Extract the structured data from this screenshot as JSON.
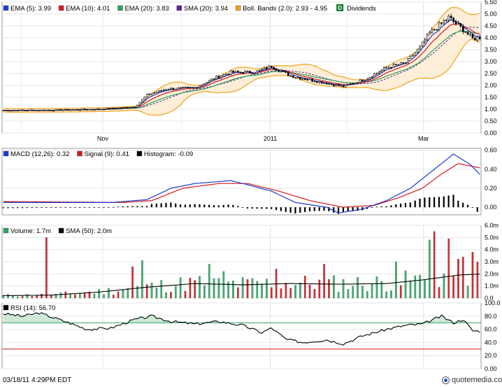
{
  "chart_data": [
    {
      "panel": "price",
      "type": "candlestick",
      "legend": [
        {
          "label": "EMA (5): 3.99",
          "color": "#1f3ccf"
        },
        {
          "label": "EMA (10): 4.01",
          "color": "#d7191c"
        },
        {
          "label": "EMA (20): 3.83",
          "color": "#2ca25f"
        },
        {
          "label": "SMA (20): 3.94",
          "color": "#54278f"
        },
        {
          "label": "Boll. Bands (2.0): 2.93 - 4.95",
          "color": "#f0a21a"
        }
      ],
      "dividends": {
        "badge": "D",
        "label": "Dividends",
        "color": "#137a2a"
      },
      "y_ticks": [
        "5.50",
        "5.00",
        "4.50",
        "4.00",
        "3.50",
        "3.00",
        "2.50",
        "2.00",
        "1.50",
        "1.00",
        "0.50",
        "0.00"
      ],
      "ylim": [
        0,
        5.5
      ],
      "x_ticks": [
        "Nov",
        "2011",
        "Mar"
      ],
      "x_tick_days": [
        42,
        112,
        176
      ],
      "days": 200,
      "key_points": [
        [
          0,
          0.95
        ],
        [
          20,
          0.96
        ],
        [
          40,
          1.0
        ],
        [
          55,
          1.1
        ],
        [
          60,
          1.6
        ],
        [
          68,
          1.85
        ],
        [
          80,
          1.9
        ],
        [
          88,
          2.3
        ],
        [
          95,
          2.55
        ],
        [
          105,
          2.55
        ],
        [
          112,
          2.8
        ],
        [
          120,
          2.4
        ],
        [
          132,
          2.15
        ],
        [
          142,
          1.95
        ],
        [
          152,
          2.3
        ],
        [
          160,
          2.75
        ],
        [
          168,
          2.95
        ],
        [
          174,
          3.6
        ],
        [
          178,
          4.2
        ],
        [
          186,
          4.85
        ],
        [
          192,
          4.35
        ],
        [
          196,
          3.95
        ],
        [
          200,
          4.05
        ]
      ]
    },
    {
      "panel": "macd",
      "type": "line+histogram",
      "legend": [
        {
          "label": "MACD (12,26): 0.32",
          "color": "#1f3ccf"
        },
        {
          "label": "Signal (9): 0.41",
          "color": "#d7191c"
        },
        {
          "label": "Histogram: -0.09",
          "color": "#000000"
        }
      ],
      "y_ticks": [
        "0.60",
        "0.40",
        "0.20",
        "0.00"
      ],
      "ylim": [
        -0.08,
        0.62
      ],
      "macd_points": [
        [
          0,
          0.05
        ],
        [
          45,
          0.05
        ],
        [
          60,
          0.08
        ],
        [
          70,
          0.2
        ],
        [
          80,
          0.25
        ],
        [
          95,
          0.28
        ],
        [
          100,
          0.25
        ],
        [
          112,
          0.17
        ],
        [
          122,
          0.05
        ],
        [
          135,
          0.0
        ],
        [
          140,
          -0.06
        ],
        [
          150,
          -0.02
        ],
        [
          160,
          0.07
        ],
        [
          170,
          0.2
        ],
        [
          180,
          0.4
        ],
        [
          188,
          0.56
        ],
        [
          195,
          0.45
        ],
        [
          200,
          0.32
        ]
      ],
      "signal_points": [
        [
          0,
          0.06
        ],
        [
          50,
          0.05
        ],
        [
          62,
          0.07
        ],
        [
          75,
          0.2
        ],
        [
          90,
          0.25
        ],
        [
          102,
          0.25
        ],
        [
          115,
          0.17
        ],
        [
          128,
          0.07
        ],
        [
          142,
          0.0
        ],
        [
          155,
          0.02
        ],
        [
          165,
          0.1
        ],
        [
          175,
          0.2
        ],
        [
          183,
          0.35
        ],
        [
          190,
          0.46
        ],
        [
          200,
          0.41
        ]
      ]
    },
    {
      "panel": "volume",
      "type": "bar",
      "legend": [
        {
          "label": "Volume: 1.7m",
          "color": "#2ca25f"
        },
        {
          "label": "SMA (50): 2.0m",
          "color": "#000000"
        }
      ],
      "y_ticks": [
        "6.0m",
        "5.0m",
        "4.0m",
        "3.0m",
        "2.0m",
        "1.0m",
        "0.0"
      ],
      "ylim": [
        0,
        6.0
      ],
      "sma_points": [
        [
          0,
          0.2
        ],
        [
          20,
          0.25
        ],
        [
          40,
          0.5
        ],
        [
          60,
          0.9
        ],
        [
          80,
          1.2
        ],
        [
          100,
          1.1
        ],
        [
          120,
          1.2
        ],
        [
          140,
          1.15
        ],
        [
          160,
          1.2
        ],
        [
          175,
          1.5
        ],
        [
          190,
          1.9
        ],
        [
          200,
          2.0
        ]
      ],
      "spikes": [
        [
          18,
          5.0
        ],
        [
          55,
          2.6
        ],
        [
          58,
          3.1
        ],
        [
          86,
          2.8
        ],
        [
          92,
          2.2
        ],
        [
          115,
          2.4
        ],
        [
          135,
          2.8
        ],
        [
          165,
          3.0
        ],
        [
          178,
          4.8
        ],
        [
          181,
          5.5
        ],
        [
          186,
          4.9
        ],
        [
          193,
          3.4
        ],
        [
          197,
          3.8
        ]
      ]
    },
    {
      "panel": "rsi",
      "type": "line",
      "legend": [
        {
          "label": "RSI (14): 56.70",
          "color": "#000000"
        }
      ],
      "y_ticks": [
        "100.0",
        "80.0",
        "60.0",
        "40.0",
        "20.0",
        "0.00"
      ],
      "ylim": [
        0,
        100
      ],
      "overbought": 70,
      "oversold": 30,
      "points": [
        [
          0,
          84
        ],
        [
          8,
          80
        ],
        [
          15,
          85
        ],
        [
          25,
          73
        ],
        [
          35,
          60
        ],
        [
          45,
          62
        ],
        [
          55,
          75
        ],
        [
          62,
          80
        ],
        [
          70,
          72
        ],
        [
          80,
          68
        ],
        [
          90,
          72
        ],
        [
          100,
          66
        ],
        [
          108,
          55
        ],
        [
          112,
          62
        ],
        [
          118,
          45
        ],
        [
          125,
          40
        ],
        [
          135,
          44
        ],
        [
          142,
          38
        ],
        [
          150,
          50
        ],
        [
          160,
          60
        ],
        [
          168,
          66
        ],
        [
          175,
          68
        ],
        [
          183,
          80
        ],
        [
          188,
          70
        ],
        [
          192,
          75
        ],
        [
          196,
          58
        ],
        [
          200,
          56.7
        ]
      ]
    }
  ],
  "footer": {
    "timestamp": "03/18/11 4:29PM EDT",
    "brand": "quotemedia.com",
    "brand_suffix": ".com",
    "brand_name": "quotemedia"
  }
}
